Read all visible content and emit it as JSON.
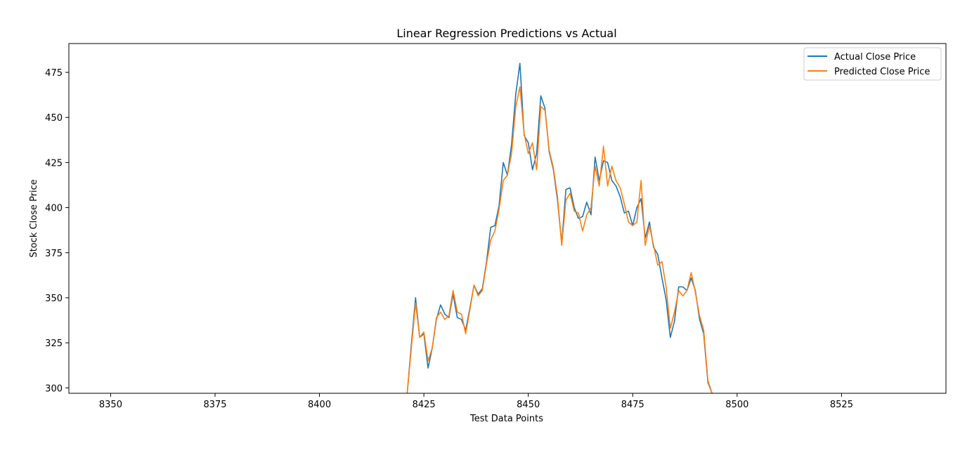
{
  "chart_data": {
    "type": "line",
    "title": "Linear Regression Predictions vs Actual",
    "xlabel": "Test Data Points",
    "ylabel": "Stock Close Price",
    "xlim": [
      8340,
      8550
    ],
    "ylim": [
      297,
      491
    ],
    "xticks": [
      8350,
      8375,
      8400,
      8425,
      8450,
      8475,
      8500,
      8525
    ],
    "yticks": [
      300,
      325,
      350,
      375,
      400,
      425,
      450,
      475
    ],
    "grid": false,
    "legend_position": "top-right",
    "x": [
      8421,
      8422,
      8423,
      8424,
      8425,
      8426,
      8427,
      8428,
      8429,
      8430,
      8431,
      8432,
      8433,
      8434,
      8435,
      8436,
      8437,
      8438,
      8439,
      8440,
      8441,
      8442,
      8443,
      8444,
      8445,
      8446,
      8447,
      8448,
      8449,
      8450,
      8451,
      8452,
      8453,
      8454,
      8455,
      8456,
      8457,
      8458,
      8459,
      8460,
      8461,
      8462,
      8463,
      8464,
      8465,
      8466,
      8467,
      8468,
      8469,
      8470,
      8471,
      8472,
      8473,
      8474,
      8475,
      8476,
      8477,
      8478,
      8479,
      8480,
      8481,
      8482,
      8483,
      8484,
      8485,
      8486,
      8487,
      8488,
      8489,
      8490,
      8491,
      8492,
      8493,
      8494
    ],
    "series": [
      {
        "name": "Actual Close Price",
        "color": "#1f77b4",
        "values": [
          297,
          324,
          350,
          328,
          330,
          311,
          322,
          338,
          346,
          341,
          339,
          352,
          339,
          338,
          332,
          344,
          357,
          352,
          355,
          370,
          389,
          390,
          401,
          425,
          418,
          435,
          463,
          480,
          440,
          436,
          421,
          430,
          462,
          455,
          431,
          421,
          404,
          380,
          410,
          411,
          400,
          394,
          395,
          403,
          396,
          428,
          415,
          426,
          425,
          415,
          412,
          406,
          397,
          398,
          390,
          400,
          405,
          383,
          392,
          378,
          374,
          361,
          349,
          328,
          337,
          356,
          356,
          354,
          361,
          354,
          338,
          330,
          303,
          297
        ],
        "line_width": 1.6
      },
      {
        "name": "Predicted Close Price",
        "color": "#ff7f0e",
        "values": [
          297,
          322,
          347,
          328,
          331,
          315,
          322,
          339,
          342,
          338,
          340,
          354,
          342,
          341,
          330,
          343,
          357,
          351,
          354,
          369,
          382,
          387,
          399,
          415,
          418,
          430,
          456,
          467,
          441,
          430,
          436,
          421,
          456,
          454,
          432,
          422,
          406,
          379,
          404,
          408,
          398,
          397,
          387,
          396,
          400,
          423,
          412,
          434,
          412,
          423,
          415,
          411,
          402,
          392,
          390,
          392,
          415,
          379,
          390,
          379,
          368,
          370,
          356,
          333,
          342,
          354,
          351,
          354,
          364,
          353,
          340,
          332,
          304,
          297
        ],
        "line_width": 1.6
      }
    ]
  }
}
